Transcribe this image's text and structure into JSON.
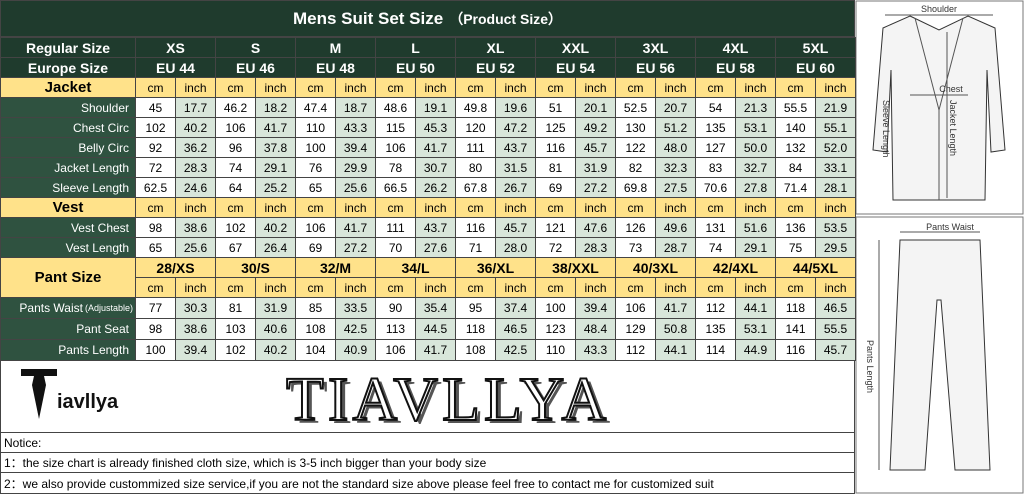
{
  "header": {
    "title": "Mens Suit Set Size",
    "subtitle": "（Product Size）"
  },
  "regular_size": {
    "label": "Regular Size",
    "values": [
      "XS",
      "S",
      "M",
      "L",
      "XL",
      "XXL",
      "3XL",
      "4XL",
      "5XL"
    ]
  },
  "europe_size": {
    "label": "Europe Size",
    "values": [
      "EU 44",
      "EU 46",
      "EU 48",
      "EU 50",
      "EU 52",
      "EU 54",
      "EU 56",
      "EU 58",
      "EU 60"
    ]
  },
  "units": {
    "cm": "cm",
    "inch": "inch"
  },
  "jacket": {
    "label": "Jacket",
    "rows": [
      {
        "label": "Shoulder",
        "values": [
          [
            "45",
            "17.7"
          ],
          [
            "46.2",
            "18.2"
          ],
          [
            "47.4",
            "18.7"
          ],
          [
            "48.6",
            "19.1"
          ],
          [
            "49.8",
            "19.6"
          ],
          [
            "51",
            "20.1"
          ],
          [
            "52.5",
            "20.7"
          ],
          [
            "54",
            "21.3"
          ],
          [
            "55.5",
            "21.9"
          ]
        ]
      },
      {
        "label": "Chest Circ",
        "values": [
          [
            "102",
            "40.2"
          ],
          [
            "106",
            "41.7"
          ],
          [
            "110",
            "43.3"
          ],
          [
            "115",
            "45.3"
          ],
          [
            "120",
            "47.2"
          ],
          [
            "125",
            "49.2"
          ],
          [
            "130",
            "51.2"
          ],
          [
            "135",
            "53.1"
          ],
          [
            "140",
            "55.1"
          ]
        ]
      },
      {
        "label": "Belly Circ",
        "values": [
          [
            "92",
            "36.2"
          ],
          [
            "96",
            "37.8"
          ],
          [
            "100",
            "39.4"
          ],
          [
            "106",
            "41.7"
          ],
          [
            "111",
            "43.7"
          ],
          [
            "116",
            "45.7"
          ],
          [
            "122",
            "48.0"
          ],
          [
            "127",
            "50.0"
          ],
          [
            "132",
            "52.0"
          ]
        ]
      },
      {
        "label": "Jacket Length",
        "values": [
          [
            "72",
            "28.3"
          ],
          [
            "74",
            "29.1"
          ],
          [
            "76",
            "29.9"
          ],
          [
            "78",
            "30.7"
          ],
          [
            "80",
            "31.5"
          ],
          [
            "81",
            "31.9"
          ],
          [
            "82",
            "32.3"
          ],
          [
            "83",
            "32.7"
          ],
          [
            "84",
            "33.1"
          ]
        ]
      },
      {
        "label": "Sleeve Length",
        "values": [
          [
            "62.5",
            "24.6"
          ],
          [
            "64",
            "25.2"
          ],
          [
            "65",
            "25.6"
          ],
          [
            "66.5",
            "26.2"
          ],
          [
            "67.8",
            "26.7"
          ],
          [
            "69",
            "27.2"
          ],
          [
            "69.8",
            "27.5"
          ],
          [
            "70.6",
            "27.8"
          ],
          [
            "71.4",
            "28.1"
          ]
        ]
      }
    ]
  },
  "vest": {
    "label": "Vest",
    "rows": [
      {
        "label": "Vest Chest",
        "values": [
          [
            "98",
            "38.6"
          ],
          [
            "102",
            "40.2"
          ],
          [
            "106",
            "41.7"
          ],
          [
            "111",
            "43.7"
          ],
          [
            "116",
            "45.7"
          ],
          [
            "121",
            "47.6"
          ],
          [
            "126",
            "49.6"
          ],
          [
            "131",
            "51.6"
          ],
          [
            "136",
            "53.5"
          ]
        ]
      },
      {
        "label": "Vest Length",
        "values": [
          [
            "65",
            "25.6"
          ],
          [
            "67",
            "26.4"
          ],
          [
            "69",
            "27.2"
          ],
          [
            "70",
            "27.6"
          ],
          [
            "71",
            "28.0"
          ],
          [
            "72",
            "28.3"
          ],
          [
            "73",
            "28.7"
          ],
          [
            "74",
            "29.1"
          ],
          [
            "75",
            "29.5"
          ]
        ]
      }
    ]
  },
  "pants": {
    "label": "Pant Size",
    "sizes": [
      "28/XS",
      "30/S",
      "32/M",
      "34/L",
      "36/XL",
      "38/XXL",
      "40/3XL",
      "42/4XL",
      "44/5XL"
    ],
    "rows": [
      {
        "label": "Pants Waist",
        "note": "(Adjustable)",
        "values": [
          [
            "77",
            "30.3"
          ],
          [
            "81",
            "31.9"
          ],
          [
            "85",
            "33.5"
          ],
          [
            "90",
            "35.4"
          ],
          [
            "95",
            "37.4"
          ],
          [
            "100",
            "39.4"
          ],
          [
            "106",
            "41.7"
          ],
          [
            "112",
            "44.1"
          ],
          [
            "118",
            "46.5"
          ]
        ]
      },
      {
        "label": "Pant Seat",
        "values": [
          [
            "98",
            "38.6"
          ],
          [
            "103",
            "40.6"
          ],
          [
            "108",
            "42.5"
          ],
          [
            "113",
            "44.5"
          ],
          [
            "118",
            "46.5"
          ],
          [
            "123",
            "48.4"
          ],
          [
            "129",
            "50.8"
          ],
          [
            "135",
            "53.1"
          ],
          [
            "141",
            "55.5"
          ]
        ]
      },
      {
        "label": "Pants Length",
        "values": [
          [
            "100",
            "39.4"
          ],
          [
            "102",
            "40.2"
          ],
          [
            "104",
            "40.9"
          ],
          [
            "106",
            "41.7"
          ],
          [
            "108",
            "42.5"
          ],
          [
            "110",
            "43.3"
          ],
          [
            "112",
            "44.1"
          ],
          [
            "114",
            "44.9"
          ],
          [
            "116",
            "45.7"
          ]
        ]
      }
    ]
  },
  "brand": {
    "small": "iavllya",
    "large": "TIAVLLYA"
  },
  "notice": {
    "title": "Notice:",
    "lines": [
      "1：the size chart is already finished cloth size, which is 3-5 inch bigger than your body size",
      "2：we also provide custommized size service,if you are not the standard size above please feel free to contact me for customized suit"
    ]
  },
  "figures": {
    "jacket": {
      "shoulder": "Shoulder",
      "chest": "Chest",
      "sleeve": "Sleeve Length",
      "length": "Jacket Length"
    },
    "pants": {
      "waist": "Pants Waist",
      "length": "Pants Length"
    }
  }
}
